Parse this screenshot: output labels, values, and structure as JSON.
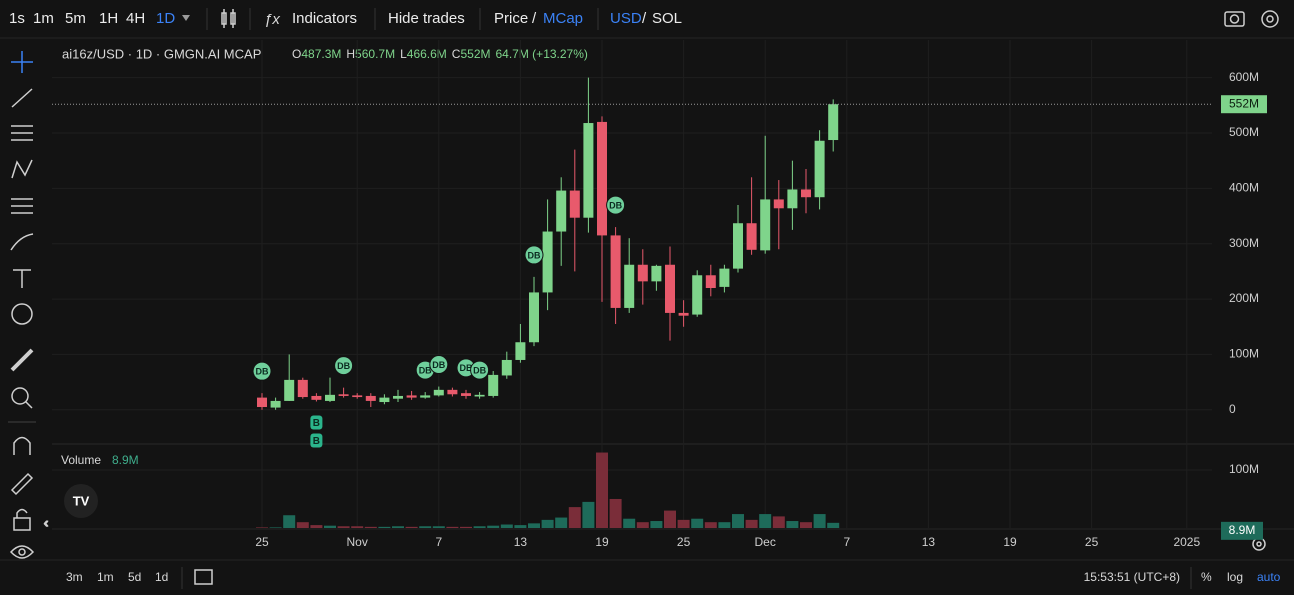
{
  "toolbar": {
    "intervals": [
      "1s",
      "1m",
      "5m",
      "1H",
      "4H",
      "1D"
    ],
    "indicators": "Indicators",
    "hide_trades": "Hide trades",
    "price": "Price",
    "slash": "/",
    "mcap": "MCap",
    "usd": "USD",
    "sol": "SOL"
  },
  "footer": {
    "ranges": [
      "3m",
      "1m",
      "5d",
      "1d"
    ],
    "time": "15:53:51 (UTC+8)",
    "percent": "%",
    "log": "log",
    "auto": "auto"
  },
  "chart_data": {
    "type": "candlestick",
    "legend": {
      "symbol": "ai16z/USD · 1D · GMGN.AI MCAP",
      "o_label": "O",
      "o": "487.3M",
      "h_label": "H",
      "h": "560.7M",
      "l_label": "L",
      "l": "466.6M",
      "c_label": "C",
      "c": "552M",
      "change": "64.7M (+13.27%)"
    },
    "categories": [
      "Oct 25",
      "Oct 26",
      "Oct 27",
      "Oct 28",
      "Oct 29",
      "Oct 30",
      "Oct 31",
      "Nov 1",
      "Nov 2",
      "Nov 3",
      "Nov 4",
      "Nov 5",
      "Nov 6",
      "Nov 7",
      "Nov 8",
      "Nov 9",
      "Nov 10",
      "Nov 11",
      "Nov 12",
      "Nov 13",
      "Nov 14",
      "Nov 15",
      "Nov 16",
      "Nov 17",
      "Nov 18",
      "Nov 19",
      "Nov 20",
      "Nov 21",
      "Nov 22",
      "Nov 23",
      "Nov 24",
      "Nov 25",
      "Nov 26",
      "Nov 27",
      "Nov 28",
      "Nov 29",
      "Nov 30",
      "Dec 1",
      "Dec 2",
      "Dec 3",
      "Dec 4",
      "Dec 5",
      "Dec 6"
    ],
    "open": [
      22,
      4,
      16,
      54,
      25,
      16,
      28,
      26,
      25,
      14,
      20,
      26,
      22,
      26,
      36,
      30,
      24,
      25,
      62,
      90,
      122,
      212,
      322,
      396,
      347,
      520,
      315,
      184,
      262,
      232,
      262,
      175,
      172,
      243,
      222,
      255,
      337,
      288,
      380,
      364,
      398,
      384,
      487.3
    ],
    "high": [
      30,
      22,
      100,
      58,
      30,
      58,
      40,
      30,
      30,
      28,
      36,
      34,
      32,
      42,
      40,
      36,
      32,
      70,
      105,
      155,
      240,
      380,
      420,
      470,
      600,
      530,
      330,
      310,
      290,
      262,
      295,
      198,
      252,
      262,
      262,
      370,
      420,
      495,
      415,
      450,
      435,
      505,
      560.7
    ],
    "low": [
      0,
      0,
      16,
      20,
      15,
      14,
      22,
      20,
      5,
      10,
      14,
      18,
      20,
      24,
      24,
      20,
      20,
      22,
      56,
      85,
      115,
      180,
      260,
      250,
      320,
      195,
      155,
      175,
      190,
      215,
      125,
      150,
      168,
      205,
      212,
      248,
      280,
      282,
      290,
      325,
      355,
      362,
      466.6
    ],
    "close": [
      5,
      16,
      54,
      23,
      18,
      27,
      25,
      23,
      16,
      22,
      25,
      22,
      26,
      36,
      28,
      25,
      27,
      63,
      90,
      122,
      212,
      322,
      396,
      347,
      518,
      315,
      184,
      262,
      232,
      260,
      175,
      170,
      243,
      220,
      255,
      337,
      289,
      380,
      364,
      398,
      384,
      486,
      552
    ],
    "volume": [
      1,
      1,
      22,
      10,
      5,
      4,
      3,
      3,
      2,
      2,
      3,
      2,
      3,
      3,
      2,
      2,
      3,
      4,
      6,
      5,
      8,
      14,
      18,
      36,
      45,
      130,
      50,
      16,
      10,
      12,
      30,
      14,
      16,
      10,
      10,
      24,
      14,
      24,
      20,
      12,
      10,
      24,
      8.9
    ],
    "up_color": "#7fd48b",
    "down_color": "#e85a6c",
    "volume_up_color": "#1e6b5a",
    "volume_down_color": "#7a2d39",
    "ylim": [
      -60,
      668
    ],
    "yticks": [
      0,
      {
        "value": 100,
        "label": "100M"
      },
      {
        "value": 200,
        "label": "200M"
      },
      {
        "value": 300,
        "label": "300M"
      },
      {
        "value": 400,
        "label": "400M"
      },
      {
        "value": 500,
        "label": "500M"
      },
      {
        "value": 600,
        "label": "600M"
      }
    ],
    "last_price_label": "552M",
    "volume_title": "Volume",
    "volume_label": "8.9M",
    "volume_ylim": [
      0,
      143
    ],
    "volume_yticks": [
      {
        "value": 100,
        "label": "100M"
      }
    ],
    "xticks": [
      {
        "value": 0,
        "label": "25"
      },
      {
        "value": 7,
        "label": "Nov"
      },
      {
        "value": 13,
        "label": "7"
      },
      {
        "value": 19,
        "label": "13"
      },
      {
        "value": 25,
        "label": "19"
      },
      {
        "value": 31,
        "label": "25"
      },
      {
        "value": 37,
        "label": "Dec"
      },
      {
        "value": 43,
        "label": "7"
      },
      {
        "value": 49,
        "label": "13"
      },
      {
        "value": 55,
        "label": "19"
      },
      {
        "value": 61,
        "label": "25"
      },
      {
        "value": 68,
        "label": "2025"
      }
    ],
    "grid": true,
    "markers": [
      {
        "label": "DB",
        "date": "Oct 25"
      },
      {
        "label": "DB",
        "date": "Oct 31"
      },
      {
        "label": "DB",
        "date": "Nov 6"
      },
      {
        "label": "DB",
        "date": "Nov 7"
      },
      {
        "label": "DB",
        "date": "Nov 9"
      },
      {
        "label": "DB",
        "date": "Nov 10"
      },
      {
        "label": "DB",
        "date": "Nov 14"
      },
      {
        "label": "DB",
        "date": "Nov 20"
      },
      {
        "label": "B",
        "date": "Oct 29"
      },
      {
        "label": "B",
        "date": "Oct 29"
      }
    ]
  }
}
